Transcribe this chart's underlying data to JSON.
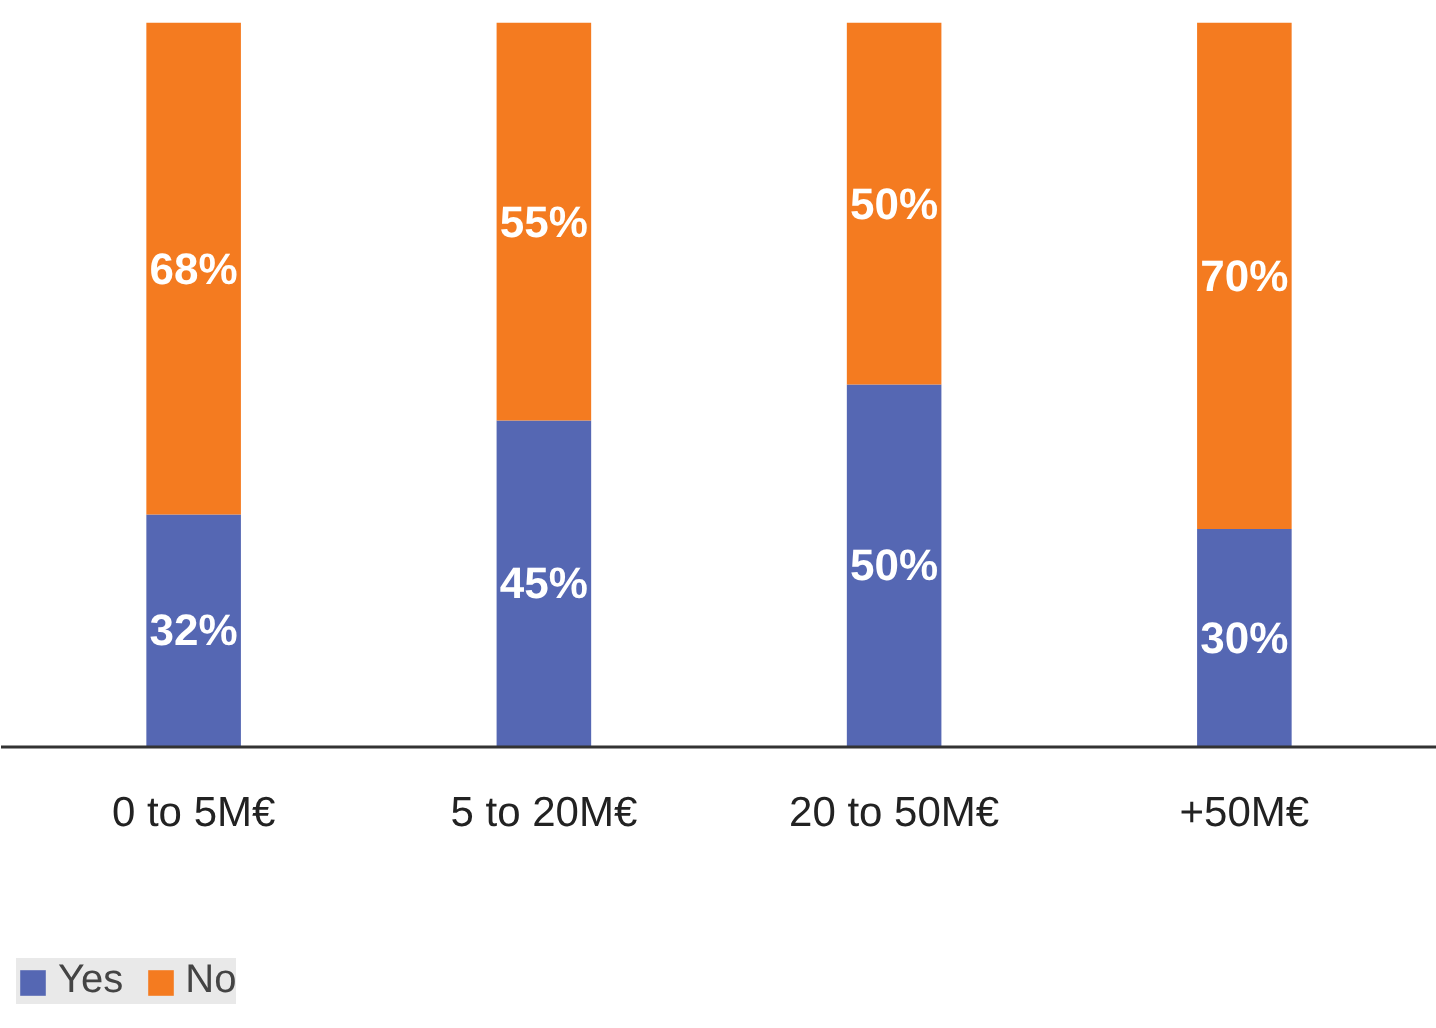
{
  "chart_data": {
    "type": "bar",
    "stacked": true,
    "categories": [
      "0 to 5M€",
      "5 to 20M€",
      "20 to 50M€",
      "+50M€"
    ],
    "series": [
      {
        "name": "Yes",
        "color": "#5567b3",
        "values": [
          32,
          45,
          50,
          30
        ],
        "value_labels": [
          "32%",
          "45%",
          "50%",
          "30%"
        ]
      },
      {
        "name": "No",
        "color": "#f47b20",
        "values": [
          68,
          55,
          50,
          70
        ],
        "value_labels": [
          "68%",
          "55%",
          "50%",
          "70%"
        ]
      }
    ],
    "legend": "bottom left"
  }
}
